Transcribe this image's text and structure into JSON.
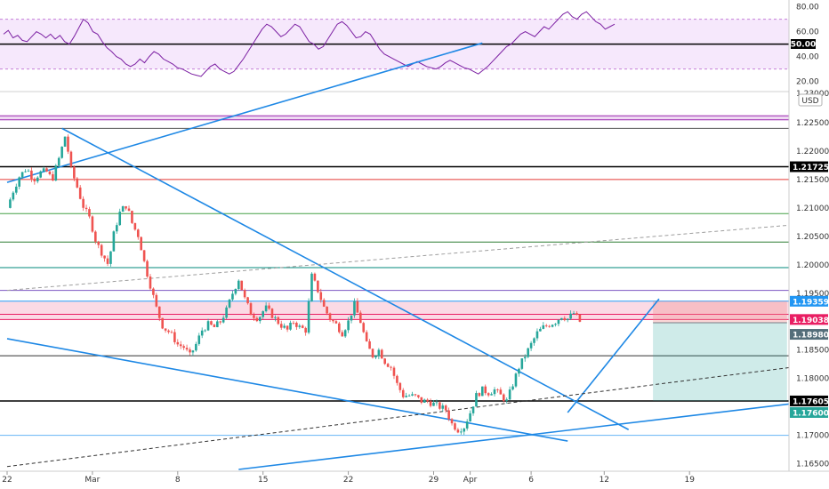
{
  "chart_data": [
    {
      "type": "line",
      "panel": "rsi",
      "ylim": [
        14,
        84
      ],
      "y_ticks": [
        "80.00",
        "60.00",
        "40.00",
        "20.00"
      ],
      "band": [
        30,
        70
      ],
      "mid_level": {
        "value": 50,
        "label": "50.00"
      },
      "colors": {
        "line": "#7b1fa2",
        "band_fill": "#f3e0fb",
        "band_line": "#c47fd6"
      },
      "series": [
        {
          "values": [
            58,
            61,
            55,
            57,
            53,
            52,
            56,
            60,
            58,
            55,
            58,
            54,
            57,
            52,
            50,
            56,
            63,
            70,
            67,
            60,
            58,
            52,
            47,
            44,
            40,
            38,
            34,
            32,
            34,
            38,
            35,
            40,
            44,
            42,
            38,
            36,
            34,
            31,
            30,
            28,
            26,
            25,
            24,
            28,
            32,
            34,
            30,
            28,
            26,
            28,
            33,
            38,
            44,
            50,
            56,
            62,
            66,
            64,
            60,
            56,
            58,
            62,
            66,
            64,
            58,
            52,
            50,
            46,
            48,
            54,
            60,
            66,
            68,
            65,
            60,
            55,
            56,
            60,
            58,
            52,
            46,
            42,
            40,
            38,
            36,
            34,
            32,
            34,
            36,
            34,
            32,
            31,
            30,
            32,
            35,
            37,
            35,
            33,
            31,
            30,
            28,
            26,
            29,
            32,
            36,
            40,
            44,
            48,
            50,
            54,
            58,
            60,
            58,
            56,
            60,
            64,
            62,
            66,
            70,
            74,
            76,
            72,
            70,
            74,
            76,
            72,
            68,
            66,
            62,
            64,
            66
          ]
        }
      ]
    },
    {
      "type": "candlestick",
      "panel": "price",
      "ylim": [
        1.164,
        1.23
      ],
      "y_ticks": [
        "1.22500",
        "1.22000",
        "1.21500",
        "1.21000",
        "1.20500",
        "1.20000",
        "1.19500",
        "1.18500",
        "1.18000",
        "1.17000",
        "1.16500"
      ],
      "y_ticks_partial": [
        "1.23000"
      ],
      "unit": "USD",
      "x_dates": [
        {
          "label": "22",
          "day": 0
        },
        {
          "label": "Mar",
          "day": 7
        },
        {
          "label": "8",
          "day": 14
        },
        {
          "label": "15",
          "day": 21
        },
        {
          "label": "22",
          "day": 28
        },
        {
          "label": "29",
          "day": 35
        },
        {
          "label": "Apr",
          "day": 38
        },
        {
          "label": "6",
          "day": 43
        },
        {
          "label": "12",
          "day": 49
        },
        {
          "label": "19",
          "day": 56
        }
      ],
      "colors": {
        "up": "#26a69a",
        "down": "#ef5350"
      },
      "close_path": [
        [
          0,
          1.21
        ],
        [
          0.5,
          1.213
        ],
        [
          1,
          1.2155
        ],
        [
          1.6,
          1.217
        ],
        [
          2.2,
          1.215
        ],
        [
          2.7,
          1.2162
        ],
        [
          3.2,
          1.2165
        ],
        [
          3.7,
          1.215
        ],
        [
          4.3,
          1.219
        ],
        [
          4.8,
          1.223
        ],
        [
          5.2,
          1.217
        ],
        [
          5.7,
          1.214
        ],
        [
          6.2,
          1.2105
        ],
        [
          6.8,
          1.208
        ],
        [
          7.3,
          1.204
        ],
        [
          7.8,
          1.202
        ],
        [
          8.3,
          1.2
        ],
        [
          8.8,
          1.206
        ],
        [
          9.3,
          1.2095
        ],
        [
          9.8,
          1.2105
        ],
        [
          10.3,
          1.207
        ],
        [
          10.8,
          1.205
        ],
        [
          11.3,
          1.2
        ],
        [
          11.8,
          1.196
        ],
        [
          12.3,
          1.192
        ],
        [
          12.8,
          1.189
        ],
        [
          13.4,
          1.188
        ],
        [
          14,
          1.186
        ],
        [
          14.5,
          1.1855
        ],
        [
          15,
          1.184
        ],
        [
          15.5,
          1.186
        ],
        [
          16,
          1.1885
        ],
        [
          16.5,
          1.1895
        ],
        [
          17,
          1.189
        ],
        [
          17.5,
          1.19
        ],
        [
          18,
          1.192
        ],
        [
          18.5,
          1.195
        ],
        [
          19,
          1.1975
        ],
        [
          19.5,
          1.194
        ],
        [
          20,
          1.1915
        ],
        [
          20.6,
          1.1905
        ],
        [
          21.2,
          1.1925
        ],
        [
          21.8,
          1.191
        ],
        [
          22.4,
          1.1895
        ],
        [
          23,
          1.1885
        ],
        [
          23.5,
          1.19
        ],
        [
          24,
          1.189
        ],
        [
          24.5,
          1.1885
        ],
        [
          25,
          1.198
        ],
        [
          25.5,
          1.1955
        ],
        [
          26,
          1.1925
        ],
        [
          26.5,
          1.1905
        ],
        [
          27,
          1.1895
        ],
        [
          27.5,
          1.188
        ],
        [
          28,
          1.19
        ],
        [
          28.5,
          1.193
        ],
        [
          29,
          1.19
        ],
        [
          29.5,
          1.186
        ],
        [
          30,
          1.184
        ],
        [
          30.5,
          1.185
        ],
        [
          31,
          1.183
        ],
        [
          31.5,
          1.182
        ],
        [
          32,
          1.179
        ],
        [
          32.5,
          1.177
        ],
        [
          33,
          1.177
        ],
        [
          33.5,
          1.1768
        ],
        [
          34,
          1.176
        ],
        [
          34.5,
          1.176
        ],
        [
          35,
          1.1755
        ],
        [
          35.5,
          1.175
        ],
        [
          36,
          1.1745
        ],
        [
          36.5,
          1.172
        ],
        [
          37,
          1.171
        ],
        [
          37.5,
          1.1715
        ],
        [
          38,
          1.174
        ],
        [
          38.5,
          1.177
        ],
        [
          39,
          1.178
        ],
        [
          39.5,
          1.1775
        ],
        [
          40,
          1.178
        ],
        [
          40.5,
          1.177
        ],
        [
          41,
          1.176
        ],
        [
          41.5,
          1.179
        ],
        [
          42,
          1.182
        ],
        [
          42.5,
          1.184
        ],
        [
          43,
          1.186
        ],
        [
          43.5,
          1.188
        ],
        [
          44,
          1.189
        ],
        [
          44.5,
          1.1895
        ],
        [
          45,
          1.19
        ],
        [
          45.5,
          1.191
        ],
        [
          46,
          1.1905
        ],
        [
          46.5,
          1.1915
        ],
        [
          47,
          1.19
        ]
      ],
      "horizontal_levels": [
        {
          "price": 1.2262,
          "color": "#9c27b0"
        },
        {
          "price": 1.2255,
          "color": "#9c27b0"
        },
        {
          "price": 1.224,
          "color": "#555555"
        },
        {
          "price": 1.21725,
          "color": "#000000",
          "label": "1.21725"
        },
        {
          "price": 1.215,
          "color": "#e53935"
        },
        {
          "price": 1.209,
          "color": "#43a047"
        },
        {
          "price": 1.204,
          "color": "#2e7d32"
        },
        {
          "price": 1.1995,
          "color": "#00897b"
        },
        {
          "price": 1.1955,
          "color": "#7e57c2"
        },
        {
          "price": 1.19359,
          "color": "#2196f3",
          "label": "1.19359"
        },
        {
          "price": 1.1913,
          "color": "#e91e63"
        },
        {
          "price": 1.19038,
          "color": "#e91e63",
          "label": "1.19038"
        },
        {
          "price": 1.184,
          "color": "#333333"
        },
        {
          "price": 1.17605,
          "color": "#000000",
          "label": "1.17605"
        },
        {
          "price": 1.17,
          "color": "#64b5f6"
        }
      ],
      "pink_zone": [
        1.1903,
        1.1935
      ],
      "purple_zone": [
        1.2255,
        1.2262
      ],
      "current_price": {
        "label": "1.18980",
        "color": "#546e7a"
      },
      "target_price": {
        "label": "1.17600",
        "color": "#26a69a"
      },
      "trend_lines": [
        {
          "from": [
            0,
            1.2145
          ],
          "to": [
            39,
            1.239
          ],
          "color": "#1e88e5",
          "style": "solid"
        },
        {
          "from": [
            4.5,
            1.224
          ],
          "to": [
            51,
            1.171
          ],
          "color": "#1e88e5",
          "style": "solid"
        },
        {
          "from": [
            0,
            1.187
          ],
          "to": [
            46,
            1.169
          ],
          "color": "#1e88e5",
          "style": "solid"
        },
        {
          "from": [
            19,
            1.164
          ],
          "to": [
            70,
            1.177
          ],
          "color": "#1e88e5",
          "style": "solid"
        },
        {
          "from": [
            46,
            1.174
          ],
          "to": [
            53.5,
            1.194
          ],
          "color": "#1e88e5",
          "style": "solid"
        },
        {
          "from": [
            0,
            1.1645
          ],
          "to": [
            70,
            1.1835
          ],
          "color": "#333333",
          "style": "dashed"
        },
        {
          "from": [
            0,
            1.1955
          ],
          "to": [
            70,
            1.208
          ],
          "color": "#9e9e9e",
          "style": "dashed"
        }
      ],
      "position_box": {
        "entry": 1.1898,
        "stop": 1.19359,
        "target": 1.17605,
        "from_day": 53,
        "to_day": 64
      }
    }
  ],
  "overlay_labels": {
    "rsi_mid_badge": "50.00",
    "unit_badge": "USD"
  }
}
